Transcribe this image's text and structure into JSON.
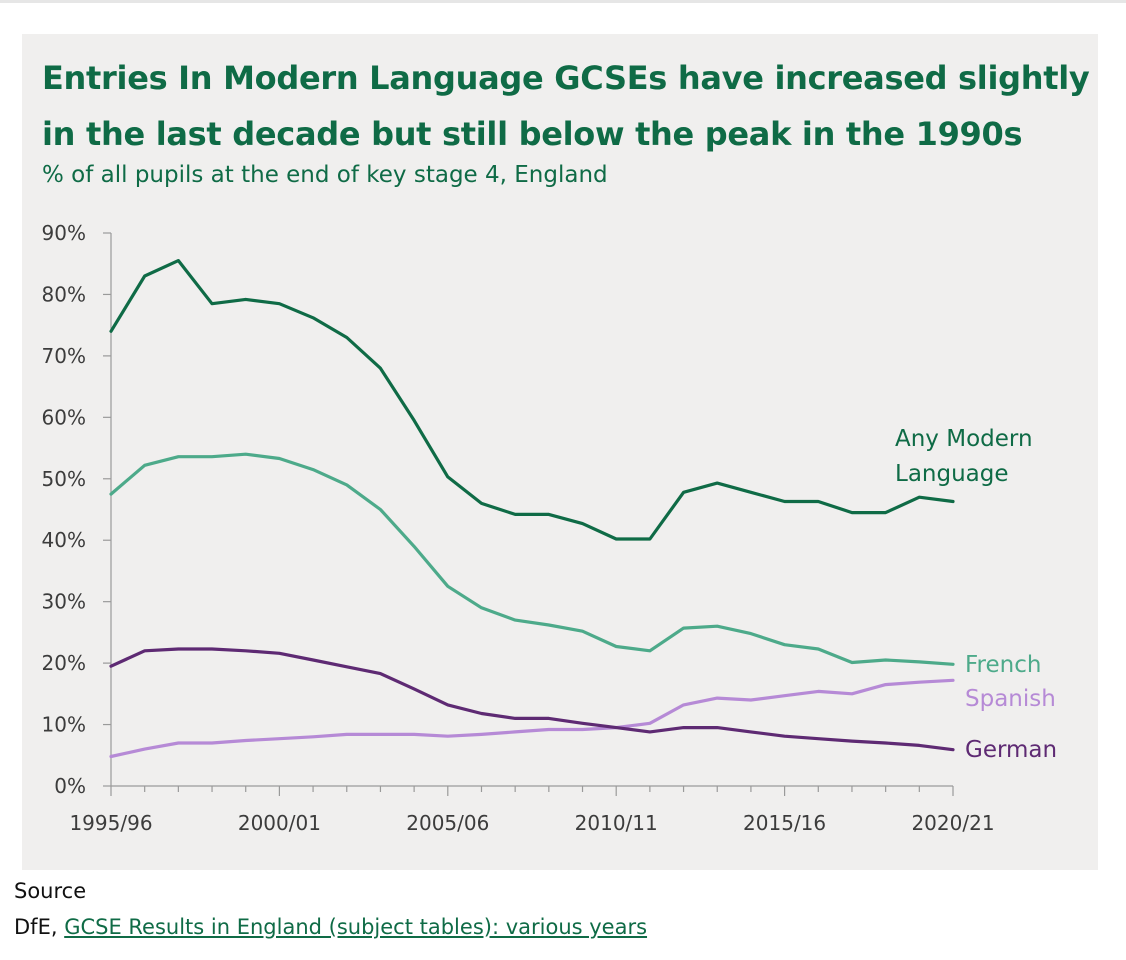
{
  "colors": {
    "any_modern_language": "#0f6b46",
    "french": "#4daa8a",
    "spanish": "#b68ad6",
    "german": "#5e2a73",
    "panel_background": "#f0efee",
    "title": "#0f6b46"
  },
  "chart_data": {
    "type": "line",
    "title": "Entries In Modern Language GCSEs have increased slightly in the last decade but still below the peak in the 1990s",
    "subtitle": "% of all pupils at the end of key stage 4, England",
    "xlabel": "",
    "ylabel": "",
    "x": [
      "1995/96",
      "1996/97",
      "1997/98",
      "1998/99",
      "1999/00",
      "2000/01",
      "2001/02",
      "2002/03",
      "2003/04",
      "2004/05",
      "2005/06",
      "2006/07",
      "2007/08",
      "2008/09",
      "2009/10",
      "2010/11",
      "2011/12",
      "2012/13",
      "2013/14",
      "2014/15",
      "2015/16",
      "2016/17",
      "2017/18",
      "2018/19",
      "2019/20",
      "2020/21"
    ],
    "x_tick_labels": [
      "1995/96",
      "2000/01",
      "2005/06",
      "2010/11",
      "2015/16",
      "2020/21"
    ],
    "ylim": [
      0,
      90
    ],
    "y_tick_labels": [
      "0%",
      "10%",
      "20%",
      "30%",
      "40%",
      "50%",
      "60%",
      "70%",
      "80%",
      "90%"
    ],
    "y_ticks": [
      0,
      10,
      20,
      30,
      40,
      50,
      60,
      70,
      80,
      90
    ],
    "grid": false,
    "legend": "direct labels at line ends",
    "series": [
      {
        "name": "Any Modern Language",
        "values": [
          74,
          83,
          85.5,
          78.5,
          79.2,
          78.5,
          76.2,
          73,
          68,
          59.5,
          50.3,
          46,
          44.2,
          44.2,
          42.7,
          40.2,
          40.2,
          47.8,
          49.3,
          47.8,
          46.3,
          46.3,
          44.5,
          44.5,
          47,
          46.3
        ]
      },
      {
        "name": "French",
        "values": [
          47.5,
          52.2,
          53.6,
          53.6,
          54,
          53.3,
          51.5,
          49,
          45,
          39,
          32.5,
          29,
          27,
          26.2,
          25.2,
          22.7,
          22,
          25.7,
          26,
          24.8,
          23,
          22.3,
          20.1,
          20.5,
          20.2,
          19.8
        ]
      },
      {
        "name": "Spanish",
        "values": [
          4.8,
          6,
          7,
          7,
          7.4,
          7.7,
          8,
          8.4,
          8.4,
          8.4,
          8.1,
          8.4,
          8.8,
          9.2,
          9.2,
          9.5,
          10.2,
          13.2,
          14.3,
          14,
          14.7,
          15.4,
          15,
          16.5,
          16.9,
          17.2
        ]
      },
      {
        "name": "German",
        "values": [
          19.5,
          22,
          22.3,
          22.3,
          22,
          21.6,
          20.5,
          19.4,
          18.3,
          15.8,
          13.2,
          11.8,
          11,
          11,
          10.2,
          9.5,
          8.8,
          9.5,
          9.5,
          8.8,
          8.1,
          7.7,
          7.3,
          7,
          6.6,
          5.9
        ]
      }
    ],
    "series_end_labels": [
      {
        "series": "Any Modern Language",
        "lines": [
          "Any Modern",
          "Language"
        ]
      },
      {
        "series": "French",
        "lines": [
          "French"
        ]
      },
      {
        "series": "Spanish",
        "lines": [
          "Spanish"
        ]
      },
      {
        "series": "German",
        "lines": [
          "German"
        ]
      }
    ]
  },
  "source": {
    "heading": "Source",
    "prefix": "DfE, ",
    "link_text": "GCSE Results in England (subject tables): various years"
  }
}
